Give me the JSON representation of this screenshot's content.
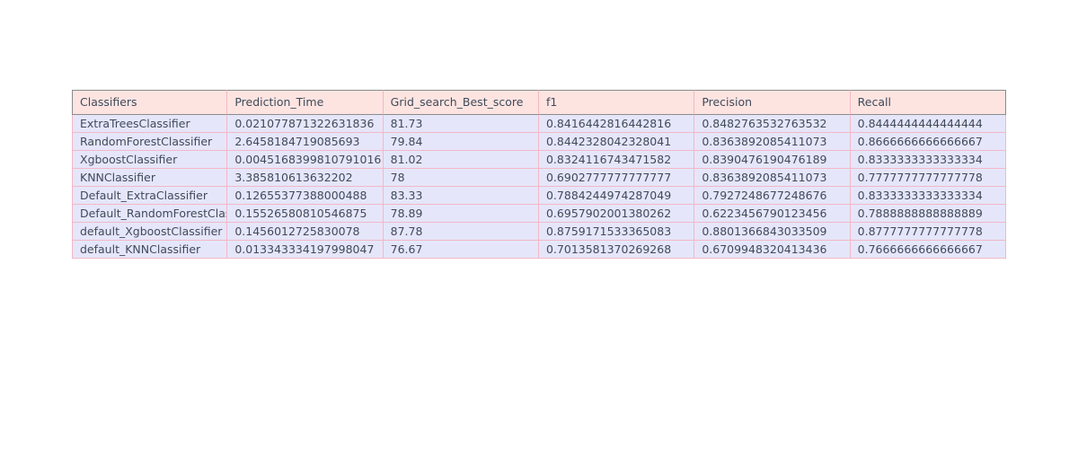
{
  "chart_data": {
    "type": "table",
    "columns": [
      "Classifiers",
      "Prediction_Time",
      "Grid_search_Best_score",
      "f1",
      "Precision",
      "Recall"
    ],
    "rows": [
      [
        "ExtraTreesClassifier",
        "0.021077871322631836",
        "81.73",
        "0.8416442816442816",
        "0.8482763532763532",
        "0.8444444444444444"
      ],
      [
        "RandomForestClassifier",
        "2.6458184719085693",
        "79.84",
        "0.8442328042328041",
        "0.8363892085411073",
        "0.8666666666666667"
      ],
      [
        "XgboostClassifier",
        "0.0045168399810791016",
        "81.02",
        "0.8324116743471582",
        "0.8390476190476189",
        "0.8333333333333334"
      ],
      [
        "KNNClassifier",
        "3.385810613632202",
        "78",
        "0.6902777777777777",
        "0.8363892085411073",
        "0.7777777777777778"
      ],
      [
        "Default_ExtraClassifier",
        "0.12655377388000488",
        "83.33",
        "0.7884244974287049",
        "0.7927248677248676",
        "0.8333333333333334"
      ],
      [
        "Default_RandomForestClassifier",
        "0.15526580810546875",
        "78.89",
        "0.6957902001380262",
        "0.6223456790123456",
        "0.7888888888888889"
      ],
      [
        "default_XgboostClassifier",
        "0.1456012725830078",
        "87.78",
        "0.8759171533365083",
        "0.8801366843033509",
        "0.8777777777777778"
      ],
      [
        "default_KNNClassifier",
        "0.013343334197998047",
        "76.67",
        "0.7013581370269268",
        "0.6709948320413436",
        "0.7666666666666667"
      ]
    ]
  },
  "colors": {
    "header_fill": "#fde4e1",
    "cell_fill": "#e6e6fa",
    "line": "#f2b8c6",
    "text": "#3f4a5a"
  }
}
